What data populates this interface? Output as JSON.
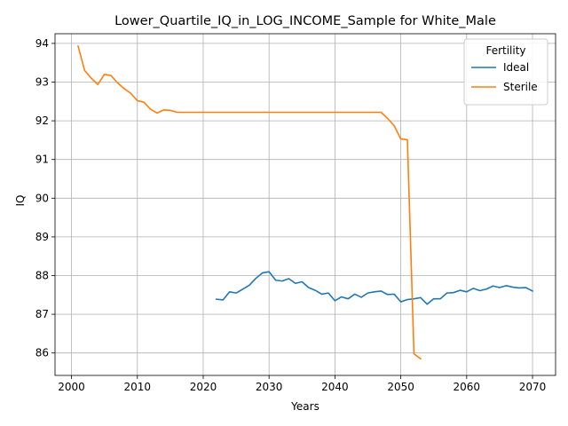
{
  "chart_data": {
    "type": "line",
    "title": "Lower_Quartile_IQ_in_LOG_INCOME_Sample for White_Male",
    "xlabel": "Years",
    "ylabel": "IQ",
    "xlim": [
      1997.5,
      2073.5
    ],
    "ylim": [
      85.42,
      94.25
    ],
    "xticks": [
      2000,
      2010,
      2020,
      2030,
      2040,
      2050,
      2060,
      2070
    ],
    "yticks": [
      86,
      87,
      88,
      89,
      90,
      91,
      92,
      93,
      94
    ],
    "grid": true,
    "legend": {
      "title": "Fertility",
      "placement": "top-right"
    },
    "series": [
      {
        "name": "Ideal",
        "color": "#1f77b4",
        "x": [
          2022,
          2023,
          2024,
          2025,
          2026,
          2027,
          2028,
          2029,
          2030,
          2031,
          2032,
          2033,
          2034,
          2035,
          2036,
          2037,
          2038,
          2039,
          2040,
          2041,
          2042,
          2043,
          2044,
          2045,
          2046,
          2047,
          2048,
          2049,
          2050,
          2051,
          2052,
          2053,
          2054,
          2055,
          2056,
          2057,
          2058,
          2059,
          2060,
          2061,
          2062,
          2063,
          2064,
          2065,
          2066,
          2067,
          2068,
          2069,
          2070
        ],
        "y": [
          87.39,
          87.37,
          87.58,
          87.55,
          87.65,
          87.75,
          87.93,
          88.07,
          88.1,
          87.88,
          87.86,
          87.92,
          87.8,
          87.84,
          87.69,
          87.62,
          87.52,
          87.55,
          87.35,
          87.45,
          87.4,
          87.52,
          87.44,
          87.55,
          87.58,
          87.6,
          87.51,
          87.52,
          87.32,
          87.38,
          87.4,
          87.43,
          87.26,
          87.4,
          87.4,
          87.55,
          87.56,
          87.62,
          87.58,
          87.67,
          87.61,
          87.65,
          87.73,
          87.69,
          87.74,
          87.7,
          87.68,
          87.69,
          87.6
        ]
      },
      {
        "name": "Sterile",
        "color": "#ff7f0e",
        "x": [
          2001,
          2002,
          2003,
          2004,
          2005,
          2006,
          2007,
          2008,
          2009,
          2010,
          2011,
          2012,
          2013,
          2014,
          2015,
          2016,
          2017,
          2018,
          2019,
          2020,
          2025,
          2030,
          2035,
          2040,
          2045,
          2046,
          2047,
          2048,
          2049,
          2050,
          2051,
          2052,
          2053
        ],
        "y": [
          93.93,
          93.3,
          93.1,
          92.94,
          93.2,
          93.17,
          92.98,
          92.83,
          92.71,
          92.52,
          92.48,
          92.3,
          92.2,
          92.28,
          92.27,
          92.22,
          92.22,
          92.22,
          92.22,
          92.22,
          92.22,
          92.22,
          92.22,
          92.22,
          92.22,
          92.22,
          92.22,
          92.06,
          91.87,
          91.53,
          91.51,
          85.98,
          85.85
        ]
      }
    ]
  }
}
